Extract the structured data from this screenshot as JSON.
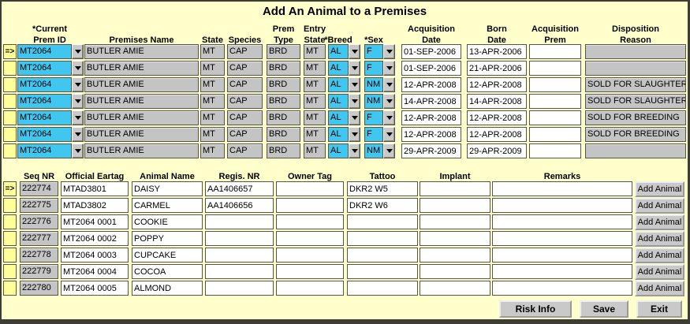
{
  "title": "Add An Animal to a Premises",
  "indicator_symbol": "=>",
  "colors": {
    "background": "#FFFFCC",
    "field_readonly": "#C4C4C4",
    "field_editable": "#FFFFFF",
    "field_highlight": "#41C6F0",
    "indicator_yellow": "#FFFF99",
    "button_face": "#C9C9C9"
  },
  "premises_table": {
    "headers": [
      {
        "line1": "*Current",
        "line2": "Prem ID"
      },
      {
        "line1": "",
        "line2": "Premises Name"
      },
      {
        "line1": "",
        "line2": "State"
      },
      {
        "line1": "",
        "line2": "Species"
      },
      {
        "line1": "Prem",
        "line2": "Type"
      },
      {
        "line1": "Entry",
        "line2": "State"
      },
      {
        "line1": "",
        "line2": "*Breed"
      },
      {
        "line1": "",
        "line2": "*Sex"
      },
      {
        "line1": "Acquisition",
        "line2": "Date"
      },
      {
        "line1": "Born",
        "line2": "Date"
      },
      {
        "line1": "Acquisition",
        "line2": "Prem"
      },
      {
        "line1": "Disposition",
        "line2": "Reason"
      }
    ],
    "rows": [
      {
        "current": true,
        "prem_id": "MT2064",
        "premises_name": "BUTLER AMIE",
        "state": "MT",
        "species": "CAP",
        "prem_type": "BRD",
        "entry_state": "MT",
        "breed": "AL",
        "sex": "F",
        "acquisition_date": "01-SEP-2006",
        "born_date": "13-APR-2006",
        "acquisition_prem": "",
        "disposition_reason": ""
      },
      {
        "current": false,
        "prem_id": "MT2064",
        "premises_name": "BUTLER AMIE",
        "state": "MT",
        "species": "CAP",
        "prem_type": "BRD",
        "entry_state": "MT",
        "breed": "AL",
        "sex": "F",
        "acquisition_date": "01-SEP-2006",
        "born_date": "21-APR-2006",
        "acquisition_prem": "",
        "disposition_reason": ""
      },
      {
        "current": false,
        "prem_id": "MT2064",
        "premises_name": "BUTLER AMIE",
        "state": "MT",
        "species": "CAP",
        "prem_type": "BRD",
        "entry_state": "MT",
        "breed": "AL",
        "sex": "NM",
        "acquisition_date": "12-APR-2008",
        "born_date": "12-APR-2008",
        "acquisition_prem": "",
        "disposition_reason": "SOLD FOR SLAUGHTER"
      },
      {
        "current": false,
        "prem_id": "MT2064",
        "premises_name": "BUTLER AMIE",
        "state": "MT",
        "species": "CAP",
        "prem_type": "BRD",
        "entry_state": "MT",
        "breed": "AL",
        "sex": "NM",
        "acquisition_date": "14-APR-2008",
        "born_date": "14-APR-2008",
        "acquisition_prem": "",
        "disposition_reason": "SOLD FOR SLAUGHTER"
      },
      {
        "current": false,
        "prem_id": "MT2064",
        "premises_name": "BUTLER AMIE",
        "state": "MT",
        "species": "CAP",
        "prem_type": "BRD",
        "entry_state": "MT",
        "breed": "AL",
        "sex": "F",
        "acquisition_date": "12-APR-2008",
        "born_date": "12-APR-2008",
        "acquisition_prem": "",
        "disposition_reason": "SOLD FOR BREEDING"
      },
      {
        "current": false,
        "prem_id": "MT2064",
        "premises_name": "BUTLER AMIE",
        "state": "MT",
        "species": "CAP",
        "prem_type": "BRD",
        "entry_state": "MT",
        "breed": "AL",
        "sex": "F",
        "acquisition_date": "12-APR-2008",
        "born_date": "12-APR-2008",
        "acquisition_prem": "",
        "disposition_reason": "SOLD FOR BREEDING"
      },
      {
        "current": false,
        "prem_id": "MT2064",
        "premises_name": "BUTLER AMIE",
        "state": "MT",
        "species": "CAP",
        "prem_type": "BRD",
        "entry_state": "MT",
        "breed": "AL",
        "sex": "NM",
        "acquisition_date": "29-APR-2009",
        "born_date": "29-APR-2009",
        "acquisition_prem": "",
        "disposition_reason": ""
      }
    ]
  },
  "animals_table": {
    "headers": [
      "Seq NR",
      "Official Eartag",
      "Animal Name",
      "Regis. NR",
      "Owner Tag",
      "Tattoo",
      "Implant",
      "Remarks"
    ],
    "row_button_label": "Add Animal",
    "rows": [
      {
        "current": true,
        "seq_nr": "222774",
        "official_eartag": "MTAD3801",
        "animal_name": "DAISY",
        "regis_nr": "AA1406657",
        "owner_tag": "",
        "tattoo": "DKR2 W5",
        "implant": "",
        "remarks": ""
      },
      {
        "current": false,
        "seq_nr": "222775",
        "official_eartag": "MTAD3802",
        "animal_name": "CARMEL",
        "regis_nr": "AA1406656",
        "owner_tag": "",
        "tattoo": "DKR2 W6",
        "implant": "",
        "remarks": ""
      },
      {
        "current": false,
        "seq_nr": "222776",
        "official_eartag": "MT2064 0001",
        "animal_name": "COOKIE",
        "regis_nr": "",
        "owner_tag": "",
        "tattoo": "",
        "implant": "",
        "remarks": ""
      },
      {
        "current": false,
        "seq_nr": "222777",
        "official_eartag": "MT2064 0002",
        "animal_name": "POPPY",
        "regis_nr": "",
        "owner_tag": "",
        "tattoo": "",
        "implant": "",
        "remarks": ""
      },
      {
        "current": false,
        "seq_nr": "222778",
        "official_eartag": "MT2064 0003",
        "animal_name": "CUPCAKE",
        "regis_nr": "",
        "owner_tag": "",
        "tattoo": "",
        "implant": "",
        "remarks": ""
      },
      {
        "current": false,
        "seq_nr": "222779",
        "official_eartag": "MT2064 0004",
        "animal_name": "COCOA",
        "regis_nr": "",
        "owner_tag": "",
        "tattoo": "",
        "implant": "",
        "remarks": ""
      },
      {
        "current": false,
        "seq_nr": "222780",
        "official_eartag": "MT2064 0005",
        "animal_name": "ALMOND",
        "regis_nr": "",
        "owner_tag": "",
        "tattoo": "",
        "implant": "",
        "remarks": ""
      }
    ]
  },
  "footer": {
    "buttons": [
      "Risk Info",
      "Save",
      "Exit"
    ]
  }
}
